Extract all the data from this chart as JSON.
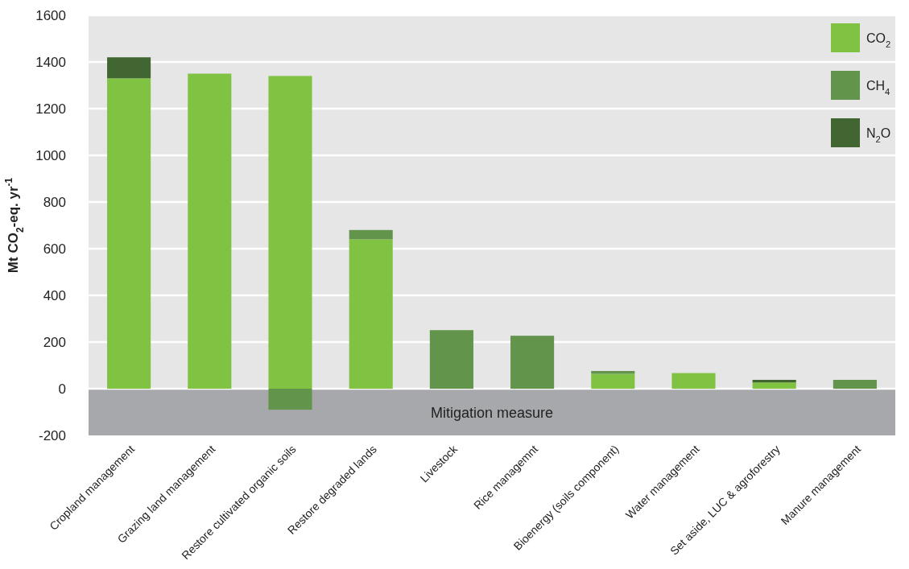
{
  "chart_data": {
    "type": "bar",
    "stacked": true,
    "ylabel": "Mt CO$_{2}$-eq. yr$^{-1}$",
    "categories": [
      "Cropland management",
      "Grazing land management",
      "Restore cultivated organic soils",
      "Restore degraded lands",
      "Livestock",
      "Rice managemnt",
      "Bioenergy (soils component)",
      "Water management",
      "Set aside, LUC & agroforestry",
      "Manure management"
    ],
    "series": [
      {
        "name": "CO$_{2}$",
        "color": "#80c242",
        "values": [
          1330,
          1350,
          1340,
          640,
          null,
          null,
          64,
          67,
          27,
          null
        ]
      },
      {
        "name": "CH$_{4}$",
        "color": "#62954b",
        "values": [
          null,
          null,
          -90,
          40,
          251,
          227,
          12,
          null,
          null,
          38
        ]
      },
      {
        "name": "N$_{2}$O",
        "color": "#426632",
        "values": [
          90,
          null,
          null,
          null,
          null,
          null,
          null,
          null,
          11,
          null
        ]
      }
    ],
    "ylim": [
      -200,
      1600
    ],
    "yticks": [
      -200,
      0,
      200,
      400,
      600,
      800,
      1000,
      1200,
      1400,
      1600
    ],
    "grid": "y",
    "legend": "top right",
    "bands": [
      {
        "axis": "y",
        "from": -200,
        "to": 0,
        "label": "Mitigation measure",
        "color": "#a7a8ab"
      }
    ]
  }
}
